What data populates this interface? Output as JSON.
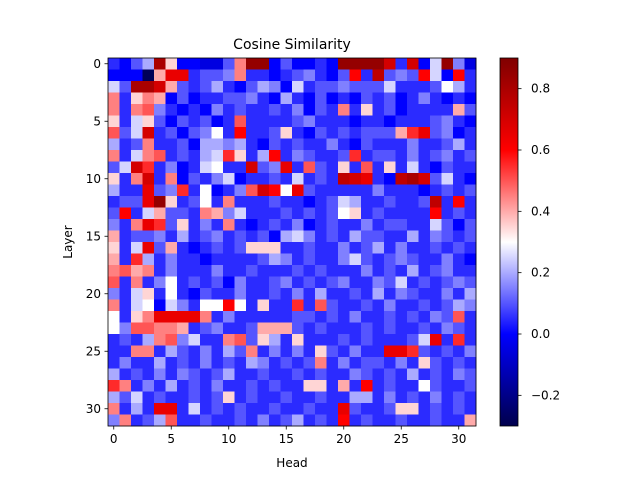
{
  "chart_data": {
    "type": "heatmap",
    "title": "Cosine Similarity",
    "xlabel": "Head",
    "ylabel": "Layer",
    "x_range": [
      0,
      31
    ],
    "y_range": [
      0,
      31
    ],
    "x_ticks": [
      0,
      5,
      10,
      15,
      20,
      25,
      30
    ],
    "y_ticks": [
      0,
      5,
      10,
      15,
      20,
      25,
      30
    ],
    "colormap": "seismic",
    "vmin": -0.3,
    "vmax": 0.9,
    "colorbar_ticks": [
      -0.2,
      0.0,
      0.2,
      0.4,
      0.6,
      0.8
    ],
    "colorbar_tick_labels": [
      "−0.2",
      "0.0",
      "0.2",
      "0.4",
      "0.6",
      "0.8"
    ],
    "grid": false,
    "values": [
      [
        0.05,
        0.0,
        0.1,
        0.2,
        0.8,
        0.35,
        0.0,
        0.0,
        -0.05,
        -0.05,
        0.1,
        0.45,
        0.85,
        0.85,
        0.0,
        0.1,
        0.0,
        0.0,
        0.05,
        0.0,
        0.85,
        0.85,
        0.85,
        0.85,
        0.7,
        0.05,
        0.7,
        0.0,
        0.25,
        0.85,
        0.15,
        -0.05
      ],
      [
        0.0,
        0.0,
        0.0,
        -0.28,
        0.4,
        0.65,
        0.65,
        0.05,
        0.1,
        0.1,
        0.15,
        0.45,
        0.05,
        0.05,
        0.0,
        0.05,
        0.1,
        0.15,
        0.05,
        0.0,
        0.1,
        0.6,
        0.05,
        0.75,
        0.1,
        0.15,
        0.1,
        0.6,
        0.25,
        0.0,
        0.6,
        0.05
      ],
      [
        0.25,
        0.1,
        0.8,
        0.8,
        0.7,
        0.4,
        0.1,
        0.05,
        0.1,
        0.2,
        0.05,
        0.0,
        0.1,
        0.2,
        0.15,
        0.0,
        0.25,
        0.05,
        0.1,
        0.1,
        0.15,
        0.1,
        0.1,
        0.1,
        0.25,
        0.05,
        0.05,
        0.05,
        0.1,
        0.3,
        0.2,
        0.05
      ],
      [
        0.45,
        0.05,
        0.35,
        0.45,
        0.4,
        0.0,
        0.1,
        0.0,
        0.05,
        0.05,
        0.1,
        0.1,
        0.15,
        0.05,
        0.0,
        0.2,
        0.05,
        0.0,
        0.1,
        0.0,
        0.05,
        0.0,
        0.1,
        0.05,
        0.1,
        0.0,
        0.05,
        0.15,
        0.05,
        0.0,
        0.05,
        0.0
      ],
      [
        0.45,
        0.05,
        0.45,
        0.5,
        0.15,
        0.05,
        0.0,
        0.05,
        0.0,
        0.15,
        0.05,
        0.1,
        0.05,
        0.05,
        0.1,
        0.05,
        0.15,
        0.0,
        0.1,
        0.05,
        0.45,
        0.05,
        0.35,
        0.05,
        0.1,
        0.0,
        0.05,
        0.05,
        0.05,
        0.05,
        0.4,
        0.1
      ],
      [
        0.35,
        0.05,
        0.25,
        0.35,
        0.1,
        0.0,
        0.1,
        0.05,
        0.1,
        0.0,
        0.05,
        0.5,
        0.05,
        0.05,
        0.05,
        0.05,
        0.1,
        0.15,
        0.05,
        0.05,
        0.05,
        0.0,
        0.05,
        0.05,
        0.0,
        0.05,
        0.05,
        0.05,
        0.1,
        0.15,
        0.05,
        0.0
      ],
      [
        0.5,
        0.1,
        0.25,
        0.7,
        0.05,
        0.1,
        0.0,
        0.1,
        0.15,
        0.3,
        0.05,
        0.6,
        0.05,
        0.05,
        0.1,
        0.35,
        0.05,
        0.0,
        0.1,
        0.05,
        0.1,
        0.05,
        0.1,
        0.1,
        0.1,
        0.4,
        0.55,
        0.65,
        0.1,
        0.15,
        0.0,
        0.05
      ],
      [
        0.2,
        0.05,
        0.1,
        0.45,
        0.05,
        0.05,
        0.1,
        0.0,
        0.2,
        0.2,
        0.15,
        0.2,
        0.05,
        0.0,
        0.1,
        0.05,
        0.1,
        0.05,
        0.05,
        0.15,
        0.05,
        0.0,
        0.1,
        0.05,
        0.05,
        0.05,
        0.15,
        0.05,
        0.05,
        0.1,
        0.2,
        0.05
      ],
      [
        0.45,
        0.05,
        0.25,
        0.45,
        0.5,
        0.05,
        0.1,
        0.05,
        0.2,
        0.25,
        0.55,
        0.35,
        0.05,
        0.2,
        0.6,
        0.05,
        0.15,
        0.1,
        0.05,
        0.05,
        0.1,
        0.55,
        0.05,
        0.1,
        0.1,
        0.05,
        0.15,
        0.05,
        0.1,
        0.15,
        0.05,
        0.1
      ],
      [
        0.1,
        0.25,
        0.7,
        0.55,
        0.05,
        0.15,
        0.0,
        0.05,
        0.25,
        0.3,
        0.05,
        0.05,
        0.7,
        0.1,
        0.15,
        0.65,
        0.05,
        0.5,
        0.1,
        0.05,
        0.35,
        0.05,
        0.5,
        0.05,
        0.35,
        0.05,
        0.25,
        0.05,
        0.0,
        0.1,
        0.05,
        0.05
      ],
      [
        0.35,
        0.05,
        0.45,
        0.7,
        0.05,
        0.45,
        0.0,
        0.1,
        0.05,
        0.15,
        0.25,
        0.0,
        0.05,
        0.05,
        0.1,
        0.05,
        0.25,
        0.05,
        0.1,
        0.05,
        0.75,
        0.7,
        0.65,
        0.05,
        0.0,
        0.75,
        0.8,
        0.7,
        0.1,
        0.25,
        0.05,
        0.0
      ],
      [
        0.2,
        0.05,
        0.05,
        0.65,
        0.1,
        0.15,
        0.55,
        0.05,
        0.3,
        0.0,
        0.05,
        0.15,
        0.5,
        0.7,
        0.6,
        0.3,
        0.65,
        0.1,
        0.05,
        0.05,
        0.05,
        0.05,
        0.05,
        0.15,
        0.05,
        0.05,
        0.05,
        0.0,
        0.05,
        0.1,
        0.05,
        0.1
      ],
      [
        0.05,
        0.1,
        0.1,
        0.65,
        0.85,
        0.35,
        0.05,
        0.1,
        0.3,
        0.05,
        0.45,
        0.05,
        0.05,
        0.05,
        0.1,
        0.05,
        0.05,
        0.0,
        0.05,
        0.1,
        0.25,
        0.2,
        0.05,
        0.05,
        0.1,
        0.05,
        0.05,
        0.1,
        0.75,
        0.05,
        0.6,
        0.05
      ],
      [
        0.1,
        0.6,
        0.05,
        0.25,
        0.4,
        0.1,
        0.1,
        0.05,
        0.45,
        0.4,
        0.15,
        0.25,
        0.05,
        0.05,
        0.05,
        0.1,
        0.05,
        0.1,
        0.05,
        0.1,
        0.3,
        0.35,
        0.05,
        0.1,
        0.05,
        0.05,
        0.05,
        0.05,
        0.6,
        0.05,
        0.1,
        0.05
      ],
      [
        0.15,
        0.05,
        0.45,
        0.65,
        0.55,
        0.1,
        0.35,
        0.05,
        0.15,
        0.05,
        0.45,
        0.05,
        0.0,
        0.05,
        0.1,
        0.05,
        0.15,
        0.0,
        0.05,
        0.1,
        0.05,
        0.05,
        0.15,
        0.05,
        0.1,
        0.1,
        0.05,
        0.05,
        0.25,
        0.1,
        0.0,
        0.1
      ],
      [
        0.4,
        0.05,
        0.1,
        0.1,
        0.15,
        0.05,
        0.2,
        0.05,
        0.1,
        0.15,
        0.05,
        0.1,
        0.05,
        0.1,
        0.0,
        0.2,
        0.25,
        0.15,
        0.05,
        0.1,
        0.05,
        0.2,
        0.1,
        0.1,
        0.05,
        0.05,
        0.2,
        0.05,
        0.15,
        0.1,
        0.05,
        0.1
      ],
      [
        0.35,
        0.05,
        0.25,
        0.65,
        0.1,
        0.4,
        0.05,
        0.0,
        0.05,
        0.1,
        0.05,
        0.1,
        0.35,
        0.35,
        0.35,
        0.05,
        0.05,
        0.1,
        0.05,
        0.05,
        0.15,
        0.05,
        0.1,
        0.2,
        0.05,
        0.15,
        0.05,
        0.05,
        0.1,
        0.05,
        0.1,
        0.05
      ],
      [
        0.4,
        0.05,
        0.55,
        0.2,
        0.05,
        0.15,
        0.05,
        0.05,
        0.0,
        0.05,
        0.05,
        0.05,
        0.05,
        0.1,
        0.2,
        0.15,
        0.05,
        0.1,
        0.05,
        0.05,
        0.15,
        0.25,
        0.1,
        0.05,
        0.1,
        0.15,
        0.1,
        0.05,
        0.05,
        0.15,
        0.05,
        0.0
      ],
      [
        0.45,
        0.5,
        0.4,
        0.45,
        0.05,
        0.15,
        0.05,
        0.05,
        0.05,
        0.15,
        0.05,
        0.05,
        0.1,
        0.05,
        0.05,
        0.05,
        0.1,
        0.05,
        0.1,
        0.05,
        0.05,
        0.05,
        0.15,
        0.05,
        0.1,
        0.05,
        0.2,
        0.05,
        0.1,
        0.15,
        0.05,
        0.05
      ],
      [
        0.5,
        0.05,
        0.45,
        0.05,
        0.15,
        0.3,
        0.05,
        0.1,
        0.05,
        0.1,
        0.0,
        0.15,
        0.05,
        0.05,
        0.1,
        0.15,
        0.05,
        0.1,
        0.05,
        0.1,
        0.15,
        0.05,
        0.05,
        0.15,
        0.1,
        0.25,
        0.05,
        0.1,
        0.05,
        0.1,
        0.15,
        0.1
      ],
      [
        0.15,
        0.05,
        0.25,
        0.35,
        0.05,
        0.3,
        0.05,
        0.0,
        0.1,
        0.05,
        0.05,
        0.15,
        0.05,
        0.05,
        0.1,
        0.05,
        0.15,
        0.05,
        0.2,
        0.05,
        0.05,
        0.1,
        0.05,
        0.2,
        0.05,
        0.15,
        0.1,
        0.05,
        0.05,
        0.15,
        0.05,
        0.2
      ],
      [
        0.45,
        0.05,
        0.25,
        0.3,
        0.0,
        0.25,
        0.15,
        0.05,
        0.3,
        0.3,
        0.6,
        0.3,
        0.05,
        0.35,
        0.05,
        0.05,
        0.55,
        0.05,
        0.5,
        0.1,
        0.05,
        0.05,
        0.1,
        0.05,
        0.15,
        0.05,
        0.05,
        0.1,
        0.05,
        0.1,
        0.2,
        0.15
      ],
      [
        0.3,
        0.05,
        0.35,
        0.45,
        0.65,
        0.65,
        0.65,
        0.65,
        0.45,
        0.05,
        0.15,
        0.05,
        0.05,
        0.05,
        0.05,
        0.05,
        0.1,
        0.1,
        0.05,
        0.1,
        0.05,
        0.15,
        0.05,
        0.05,
        0.1,
        0.05,
        0.1,
        0.05,
        0.15,
        0.1,
        0.5,
        0.05
      ],
      [
        0.3,
        0.15,
        0.5,
        0.5,
        0.45,
        0.45,
        0.4,
        0.05,
        0.1,
        0.15,
        0.05,
        0.05,
        0.1,
        0.4,
        0.4,
        0.4,
        0.1,
        0.05,
        0.1,
        0.05,
        0.05,
        0.05,
        0.1,
        0.05,
        0.1,
        0.05,
        0.05,
        0.1,
        0.05,
        0.15,
        0.1,
        0.05
      ],
      [
        0.05,
        0.1,
        0.05,
        0.2,
        0.45,
        0.5,
        0.15,
        0.25,
        0.05,
        0.05,
        0.45,
        0.5,
        0.1,
        0.35,
        0.2,
        0.05,
        0.35,
        0.05,
        0.05,
        0.05,
        0.1,
        0.05,
        0.1,
        0.05,
        0.05,
        0.05,
        0.1,
        0.25,
        0.65,
        0.05,
        0.55,
        0.05
      ],
      [
        0.05,
        0.05,
        0.45,
        0.45,
        0.05,
        0.2,
        0.1,
        0.05,
        0.15,
        0.05,
        0.2,
        0.1,
        0.45,
        0.05,
        0.15,
        0.05,
        0.15,
        0.05,
        0.35,
        0.1,
        0.05,
        0.15,
        0.05,
        0.05,
        0.65,
        0.65,
        0.55,
        0.1,
        0.05,
        0.1,
        0.05,
        0.15
      ],
      [
        0.05,
        0.15,
        0.05,
        0.05,
        0.2,
        0.05,
        0.1,
        0.05,
        0.15,
        0.05,
        0.1,
        0.05,
        0.2,
        0.15,
        0.05,
        0.1,
        0.05,
        0.1,
        0.45,
        0.05,
        0.15,
        0.05,
        0.1,
        0.1,
        0.05,
        0.15,
        0.05,
        0.35,
        0.1,
        0.05,
        0.1,
        0.05
      ],
      [
        0.2,
        0.05,
        0.1,
        0.05,
        0.15,
        0.05,
        0.15,
        0.1,
        0.05,
        0.1,
        0.2,
        0.05,
        0.05,
        0.1,
        0.05,
        0.05,
        0.1,
        0.05,
        0.1,
        0.05,
        0.05,
        0.15,
        0.1,
        0.05,
        0.1,
        0.05,
        0.2,
        0.05,
        0.1,
        0.05,
        0.15,
        0.1
      ],
      [
        0.55,
        0.45,
        0.05,
        0.15,
        0.05,
        0.2,
        0.05,
        0.1,
        0.05,
        0.15,
        0.05,
        0.05,
        0.1,
        0.05,
        0.1,
        0.05,
        0.05,
        0.35,
        0.35,
        0.05,
        0.4,
        0.05,
        0.6,
        0.05,
        0.1,
        0.05,
        0.05,
        0.3,
        0.1,
        0.05,
        0.05,
        0.1
      ],
      [
        0.2,
        0.1,
        0.25,
        0.05,
        0.1,
        0.05,
        0.05,
        0.1,
        0.05,
        0.1,
        0.35,
        0.05,
        0.1,
        0.05,
        0.05,
        0.1,
        0.05,
        0.05,
        0.1,
        0.05,
        0.05,
        0.2,
        0.2,
        0.05,
        0.15,
        0.05,
        0.1,
        0.05,
        0.15,
        0.05,
        0.1,
        0.05
      ],
      [
        0.45,
        0.05,
        0.2,
        0.05,
        0.65,
        0.65,
        0.05,
        0.25,
        0.05,
        0.1,
        0.05,
        0.1,
        0.05,
        0.05,
        0.1,
        0.05,
        0.05,
        0.1,
        0.05,
        0.05,
        0.65,
        0.1,
        0.05,
        0.05,
        0.1,
        0.35,
        0.35,
        0.05,
        0.1,
        0.05,
        0.1,
        0.05
      ],
      [
        0.15,
        0.45,
        0.05,
        0.1,
        0.2,
        0.5,
        0.05,
        0.05,
        0.1,
        0.05,
        0.05,
        0.1,
        0.05,
        0.15,
        0.05,
        0.1,
        0.2,
        0.05,
        0.1,
        0.05,
        0.6,
        0.05,
        0.1,
        0.05,
        0.05,
        0.1,
        0.05,
        0.05,
        0.1,
        0.05,
        0.05,
        0.4
      ]
    ]
  }
}
